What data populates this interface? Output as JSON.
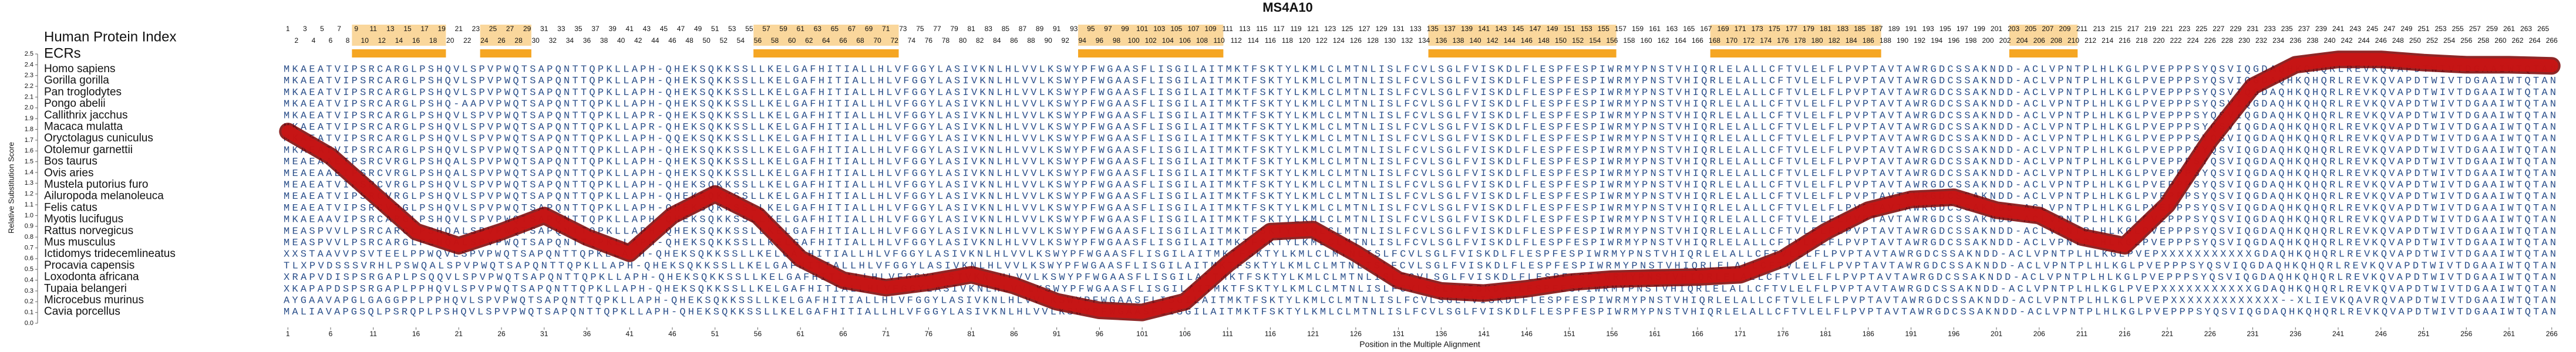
{
  "chart_data": {
    "type": "line",
    "title": "MS4A10",
    "index_label": "Human Protein Index",
    "ecr_label": "ECRs",
    "y_label": "Relative Substitution Score",
    "x_label": "Position in the Multiple Alignment",
    "color": "#cc1414",
    "ecr_color": "#f5a623",
    "xlim": [
      0.5,
      266.5
    ],
    "ylim": [
      0,
      2.5
    ],
    "xticks": [
      1,
      6,
      11,
      16,
      21,
      26,
      31,
      36,
      41,
      46,
      51,
      56,
      61,
      66,
      71,
      76,
      81,
      86,
      91,
      96,
      101,
      106,
      111,
      116,
      121,
      126,
      131,
      136,
      141,
      146,
      151,
      156,
      161,
      166,
      171,
      176,
      181,
      186,
      191,
      196,
      201,
      206,
      211,
      216,
      221,
      226,
      231,
      236,
      241,
      246,
      251,
      256,
      261,
      266
    ],
    "yticks": [
      {
        "value": 0,
        "label": "0.0"
      },
      0.1,
      0.2,
      0.3,
      0.4,
      0.5,
      0.6,
      0.7,
      0.8,
      0.9,
      {
        "value": 1,
        "label": "1.0"
      },
      1.1,
      1.2,
      1.3,
      1.4,
      1.5,
      1.6,
      1.7,
      1.8,
      1.9,
      {
        "value": 2,
        "label": "2.0"
      },
      2.1,
      2.2,
      2.3,
      2.4,
      2.5
    ],
    "categories": [
      1,
      2,
      3,
      4,
      5,
      6,
      7,
      8,
      9,
      10,
      11,
      12,
      13,
      14,
      15,
      16,
      17,
      18,
      19,
      20,
      21,
      22,
      23,
      24,
      25,
      26,
      27,
      28,
      29,
      30,
      31,
      32,
      33,
      34,
      35,
      36,
      37,
      38,
      39,
      40,
      41,
      42,
      43,
      44,
      45,
      46,
      47,
      48,
      49,
      50,
      51,
      52,
      53,
      54,
      55,
      56,
      57,
      58,
      59,
      60,
      61,
      62,
      63,
      64,
      65,
      66,
      67,
      68,
      69,
      70,
      71,
      72,
      73,
      74,
      75,
      76,
      77,
      78,
      79,
      80,
      81,
      82,
      83,
      84,
      85,
      86,
      87,
      88,
      89,
      90,
      91,
      92,
      93,
      94,
      95,
      96,
      97,
      98,
      99,
      100,
      101,
      102,
      103,
      104,
      105,
      106,
      107,
      108,
      109,
      110,
      111,
      112,
      113,
      114,
      115,
      116,
      117,
      118,
      119,
      120,
      121,
      122,
      123,
      124,
      125,
      126,
      127,
      128,
      129,
      130,
      131,
      132,
      133,
      134,
      135,
      136,
      137,
      138,
      139,
      140,
      141,
      142,
      143,
      144,
      145,
      146,
      147,
      148,
      149,
      150,
      151,
      152,
      153,
      154,
      155,
      156,
      157,
      158,
      159,
      160,
      161,
      162,
      163,
      164,
      165,
      166,
      167,
      168,
      169,
      170,
      171,
      172,
      173,
      174,
      175,
      176,
      177,
      178,
      179,
      180,
      181,
      182,
      183,
      184,
      185,
      186,
      187,
      188,
      189,
      190,
      191,
      192,
      193,
      194,
      195,
      196,
      197,
      198,
      199,
      200,
      201,
      202,
      203,
      204,
      205,
      206,
      207,
      208,
      209,
      210,
      211,
      212,
      213,
      214,
      215,
      216,
      217,
      218,
      219,
      220,
      221,
      222,
      223,
      224,
      225,
      226,
      227,
      228,
      229,
      230,
      231,
      232,
      233,
      234,
      235,
      236,
      237,
      238,
      239,
      240,
      241,
      242,
      243,
      244,
      245,
      246,
      247,
      248,
      249,
      250,
      251,
      252,
      253,
      254,
      255,
      256,
      257,
      258,
      259,
      260,
      261,
      262,
      263,
      264,
      265,
      266
    ],
    "ecrs": [
      [
        9,
        19
      ],
      [
        24,
        29
      ],
      [
        56,
        72
      ],
      [
        94,
        110
      ],
      [
        135,
        156
      ],
      [
        168,
        187
      ],
      [
        203,
        210
      ]
    ],
    "x": [
      1,
      6,
      11,
      16,
      21,
      26,
      31,
      36,
      41,
      46,
      51,
      56,
      61,
      66,
      71,
      76,
      81,
      86,
      91,
      96,
      101,
      106,
      111,
      116,
      121,
      126,
      131,
      136,
      141,
      146,
      151,
      156,
      161,
      166,
      171,
      176,
      181,
      186,
      191,
      196,
      201,
      206,
      211,
      216,
      221,
      226,
      231,
      236,
      241,
      246,
      251,
      256,
      261,
      266
    ],
    "values": [
      1.78,
      1.55,
      1.2,
      0.85,
      0.72,
      0.85,
      1.0,
      0.8,
      0.65,
      1.0,
      1.2,
      1.0,
      0.6,
      0.4,
      0.33,
      0.38,
      0.45,
      0.35,
      0.2,
      0.12,
      0.1,
      0.2,
      0.55,
      0.85,
      0.87,
      0.65,
      0.4,
      0.3,
      0.28,
      0.32,
      0.38,
      0.41,
      0.42,
      0.43,
      0.45,
      0.6,
      0.85,
      1.05,
      1.15,
      1.17,
      1.05,
      1.0,
      0.8,
      0.72,
      1.1,
      1.7,
      2.2,
      2.4,
      2.45,
      2.45,
      2.42,
      2.4,
      2.4,
      2.39
    ],
    "alignment": [
      {
        "name": "Homo sapiens",
        "sequence": "MKAEATVIPSRCARGLPSHQVLSPVPWQTSAPQNTTQPKLLAPH-QHEKSQKKSSLLKELGAFHITIALLHLVFGGYLASIVKNLHLVVLKSWYPFWGAASFLISGILAITMKTFSKTYLKMLCLMTNLISLFCVLSGLFVISKDLFLESPFESPIWRMYPNSTVHIQRLELALLCFTVLELFLPVPTAVTAWRGDCSSAKNDD-ACLVPNTPLHLKGLPVEPPPSYQSVIQGDAQHKQHQRLREVKQVAPDTWIVTDGAAIWTQTAN"
      },
      {
        "name": "Gorilla gorilla",
        "sequence": "MKAEATVIPSRCARGLPSHQVLSPVPWQTSAPQNTTQPKLLAPH-QHEKSQKKSSLLKELGAFHITIALLHLVFGGYLASIVKNLHLVVLKSWYPFWGAASFLISGILAITMKTFSKTYLKMLCLMTNLISLFCVLSGLFVISKDLFLESPFESPIWRMYPNSTVHIQRLELALLCFTVLELFLPVPTAVTAWRGDCSSAKNDD-ACLVPNTPLHLKGLPVEPPPSYQSVIQGDAQHKQHQRLREVKQVAPDTWIVTDGAAIWTQTAN"
      },
      {
        "name": "Pan troglodytes",
        "sequence": "MKAEATVIPSRCARGLPSHQVLSPVPWQTSAPQNTTQPKLLAPH-QHEKSQKKSSLLKELGAFHITIALLHLVFGGYLASIVKNLHLVVLKSWYPFWGAASFLISGILAITMKTFSKTYLKMLCLMTNLISLFCVLSGLFVISKDLFLESPFESPIWRMYPNSTVHIQRLELALLCFTVLELFLPVPTAVTAWRGDCSSAKNDD-ACLVPNTPLHLKGLPVEPPPSYQSVIQGDAQHKQHQRLREVKQVAPDTWIVTDGAAIWTQTAN"
      },
      {
        "name": "Pongo abelii",
        "sequence": "MKAEATVIPSRCARGLPSHQ-AAPVPWQTSAPQNTTQPKLLAPH-QHEKSQKKSSLLKELGAFHITIALLHLVFGGYLASIVKNLHLVVLKSWYPFWGAASFLISGILAITMKTFSKTYLKMLCLMTNLISLFCVLSGLFVISKDLFLESPFESPIWRMYPNSTVHIQRLELALLCFTVLELFLPVPTAVTAWRGDCSSAKNDD-ACLVPNTPLHLKGLPVEPPPSYQSVIQGDAQHKQHQRLREVKQVAPDTWIVTDGAAIWTQTAN"
      },
      {
        "name": "Callithrix jacchus",
        "sequence": "MKAEATVIPSRCARGLPSHQVLSPVPWQTSAPQNTTQPKLLAPR-QHEKSQKKSSLLKELGAFHITIALLHLVFGGYLASIVKNLHLVVLKSWYPFWGAASFLISGILAITMKTFSKTYLKMLCLMTNLISLFCVLSGLFVISKDLFLESPFESPIWRMYPNSTVHIQRLELALLCFTVLELFLPVPTAVTAWRGDCSSAKNDD-ACLVPNTPLHLKGLPVEPPPSYQSVIQGDAQHKQHQRLREVKQVAPDTWIVTDGAAIWTQTAN"
      },
      {
        "name": "Macaca mulatta",
        "sequence": "MKAEATVIPSRCARGLPSHQVLSPVPWQTSAPQNTTQPKLLAPR-QHEKSQKKSSLLKELGAFHITIALLHLVFGGYLASIVKNLHLVVLKSWYPFWGAASFLISGILAITMKTFSKTYLKMLCLMTNLISLFCVLSGLFVISKDLFLESPFESPIWRMYPNSTVHIQRLELALLCFTVLELFLPVPTAVTAWRGDCSSAKNDD-ACLVPNTPLHLKGLPVEPPPSYQSVIQGDAQHKQHQRLREVKQVAPDTWIVTDGAAIWTQTAN"
      },
      {
        "name": "Oryctolagus cuniculus",
        "sequence": "MKAEATVIPSRCARGLPSHQVLSPVPWQTSAPQNTTQPKLLAPH-QQEKSQKKSSLLKELGAFHITIALLHLVFGGYLASIVKNLHLVVLKSWYPFWGAASFLISGILAITMKTFSKTYLKMLCLMTNLISLFCVLSGLFVISKDLFLESPFESPIWRMYPNSTVHIQRLELALLCFTVLELFLPVPTAVTAWRGDCSSAKNDD-ACLVPNTPLHLKGLPVEPPPSYQSVIQGDAQHKQHQRLREVKQVAPDTWIVTDGAAIWTQTAN"
      },
      {
        "name": "Otolemur garnettii",
        "sequence": "MKAEATVIPSRCARGLPSHQVLSPVPWQTSAPQNTTQPKLLAPH-QHEKSQKKSSLLKELGAFHITIALLHLVFGGYLASIVKNLHLVVLKSWYPFWGAASFLISGILAITMKTFSKTYLKMLCLMTNLISLFCVLSGLFVISKDLFLESPFESPIWRMYPNSTVHIQRLELALLCFTVLELFLPVPTAVTAWRGDCSSAKNDD-ACLVPNTPLHLKGLPVEPPPSYQSVIQGDAQHKQHQRLREVKQVAPDTWIVTDGAAIWTQTAN"
      },
      {
        "name": "Bos taurus",
        "sequence": "MEAEAAEIPSRCVRGLPSHQALSPVPWQTSAPQNTTQPKLLAPH-QHEKSQKKSSLLKELGAFHITIALLHLVFGGYLASIVKNLHLVVLKSWYPFWGAASFLISGILAITMKTFSKTYLKMLCLMTNLISLFCVLSGLFVISKDLFLESPFESPIWRMYPNSTVHIQRLELALLCFTVLELFLPVPTAVTAWRGDCSSAKNDD-ACLVPNTPLHLKGLPVEPPPSYQSVIQGDAQHKQHQRLREVKQVAPDTWIVTDGAAIWTQTAN"
      },
      {
        "name": "Ovis aries",
        "sequence": "MEAEAAEIPSRCVRGLPSHQALSPVPWQTSAPQNTTQPKLLAPH-QHEKSQKKSSLLKELGAFHITIALLHLVFGGYLASIVKNLHLVVLKSWYPFWGAASFLISGILAITMKTFSKTYLKMLCLMTNLISLFCVLSGLFVISKDLFLESPFESPIWRMYPNSTVHIQRLELALLCFTVLELFLPVPTAVTAWRGDCSSAKNDD-ACLVPNTPLHLKGLPVEPPPSYQSVIQGDAQHKQHQRLREVKQVAPDTWIVTDGAAIWTQTAN"
      },
      {
        "name": "Mustela putorius furo",
        "sequence": "MEAEATVIPSRCVRGLPSHQVLSPVPWQTSAPQNTTQPKLLAPH-QHEKSQKKSSLLKELGAFHITIALLHLVFGGYLASIVKNLHLVVLKSWYPFWGAASFLISGILAITMKTFSKTYLKMLCLMTNLISLFCVLSGLFVISKDLFLESPFESPIWRMYPNSTVHIQRLELALLCFTVLELFLPVPTAVTAWRGDCSSAKNDD-ACLVPNTPLHLKGLPVEPPPSYQSVIQGDAQHKQHQRLREVKQVAPDTWIVTDGAAIWTQTAN"
      },
      {
        "name": "Ailuropoda melanoleuca",
        "sequence": "MEAEATVIPSRCVRGLPSHQVLSPVPWQTSAPQNTTQPKLLAPH-QHEKSQKKSSLLKELGAFHITIALLHLVFGGYLASIVKNLHLVVLKSWYPFWGAASFLISGILAITMKTFSKTYLKMLCLMTNLISLFCVLSGLFVISKDLFLESPFESPIWRMYPNSTVHIQRLELALLCFTVLELFLPVPTAVTAWRGDCSSAKNDD-ACLVPNTPLHLKGLPVEPPPSYQSVIQGDAQHKQHQRLREVKQVAPDTWIVTDGAAIWTQTAN"
      },
      {
        "name": "Felis catus",
        "sequence": "MEAEATVIPSRCVRGLPSHQVLSPVPWQTSAPQNTTQPKLLAPH-QHEKSQKKSSLLKELGAFHITIALLHLVFGGYLASIVKNLHLVVLKSWYPFWGAASFLISGILAITMKTFSKTYLKMLCLMTNLISLFCVLSGLFVISKDLFLESPFESPIWRMYPNSTVHIQRLELALLCFTVLELFLPVPTAVTAWRGDCSSAKNDD-ACLVPNTPLHLKGLPVEPPPSYQSVIQGDAQHKQHQRLREVKQVAPDTWIVTDGAAIWTQTAN"
      },
      {
        "name": "Myotis lucifugus",
        "sequence": "MKAEAAVIPSRCARGLPSHQVLSPVPWQTSAPQNTTQPKLLAPH-QHEKSQKKSSLLKELGAFHITIALLHLVFGGYLASIVKNLHLVVLKSWYPFWGAASFLISGILAITMKTFSKTYLKMLCLMTNLISLFCVLSGLFVISKDLFLESPFESPIWRMYPNSTVHIQRLELALLCFTVLELFLPVPTAVTAWRGDCSSAKNDD-ACLVPNTPLHLKGLPVEPPPSYQSVIQGDAQHKQHQRLREVKQVAPDTWIVTDGAAIWTQTAN"
      },
      {
        "name": "Rattus norvegicus",
        "sequence": "MEASPVVLPSRCARGLPSHQALSPVPWQTSAPQNTTQPKLLAPH-QHEKSQKKSSLLKELGAFHITIALLHLVFGGYLASIVKNLHLVVLKSWYPFWGAASFLISGILAITMKTFSKTYLKMLCLMTNLISLFCVLSGLFVISKDLFLESPFESPIWRMYPNSTVHIQRLELALLCFTVLELFLPVPTAVTAWRGDCSSAKNDD-ACLVPNTPLHLKGLPVEPPPSYQSVIQGDAQHKQHQRLREVKQVAPDTWIVTDGAAIWTQTAN"
      },
      {
        "name": "Mus musculus",
        "sequence": "MEASPVVLPSRCARGLPSHQALSPVPWQTSAPQNTTQPKLLAPH-QHEKSQKKSSLLKELGAFHITIALLHLVFGGYLASIVKNLHLVVLKSWYPFWGAASFLISGILAITMKTFSKTYLKMLCLMTNLISLFCVLSGLFVISKDLFLESPFESPIWRMYPNSTVHIQRLELALLCFTVLELFLPVPTAVTAWRGDCSSAKNDD-ACLVPNTPLHLKGLPVEPPPSYQSVIQGDAQHKQHQRLREVKQVAPDTWIVTDGAAIWTQTAN"
      },
      {
        "name": "Ictidomys tridecemlineatus",
        "sequence": "XXSTAAVVPSVTEELPPWQVLSPVPWQTSAPQNTTQPKLLAPH-QHEKSQKKSSLLKELGAFHITIALLHLVFGGYLASIVKNLHLVVLKSWYPFWGAASFLISGILAITMKTFSKTYLKMLCLMTNLISLFCVLSGLFVISKDLFLESPFESPIWRMYPNSTVHIQRLELALLCFTVLELFLPVPTAVTAWRGDCSSAKNDD-ACLVPNTPLHLKGLPVEPXXXXXXXXXXXGDAQHKQHQRLREVKQVAPDTWIVTDGAAIWTQTAN"
      },
      {
        "name": "Procavia capensis",
        "sequence": "TLXPVDSSSVRHLPSWQALSPVPWQTSAPQNTTQPKLLAPH-QHEKSQKKSSLLKELGAFHITIALLHLVFGGYLASIVKNLHLVVLKSWYPFWGAASFLISGILAITMKTFSKTYLKMLCLMTNLISLFCVLSGLFVISKDLFLESPFESPIWRMYPNSTVHIQRLELALLCFTVLELFLPVPTAVTAWRGDCSSAKNDD-ACLVPNTPLHLKGLPVEPPPSYQSVIQGDAQHKQHQRLREVKQVAPDTWIVTDGAAIWTQTAN"
      },
      {
        "name": "Loxodonta africana",
        "sequence": "XRAPVDISPSRGAPLPSQQVLSPVPWQTSAPQNTTQPKLLAPH-QHEKSQKKSSLLKELGAFHITIALLHLVFGGYLASIVKNLHLVVLKSWYPFWGAASFLISGILAITMKTFSKTYLKMLCLMTNLISLFCVLSGLFVISKDLFLESPFESPIWRMYPNSTVHIQRLELALLCFTVLELFLPVPTAVTAWRGDCSSAKNDD-ACLVPNTPLHLKGLPVEPPPSYQSVIQGDAQHKQHQRLREVKQVAPDTWIVTDGAAIWTQTAN"
      },
      {
        "name": "Tupaia belangeri",
        "sequence": "XKAPAPDSPSRGAPLPPHQVLSPVPWQTSAPQNTTQPKLLAPH-QHEKSQKKSSLLKELGAFHITIALLHLVFGGYLASIVKNLHLVVLKSWYPFWGAASFLISGILAITMKTFSKTYLKMLCLMTNLISLFCVLSGLFVISKDLFLESPFESPIWRMYPNSTVHIQRLELALLCFTVLELFLPVPTAVTAWRGDCSSAKNDD-ACLVPNTPLHLKGLPVEPXXXXXXXXXXXGDAQHKQHQRLREVKQVAPDTWIVTDGAAIWTQTAN"
      },
      {
        "name": "Microcebus murinus",
        "sequence": "AYGAAVAPGLGAGGPPLPPHQVLSPVPWQTSAPQNTTQPKLLAPH-QHEKSQKKSSLLKELGAFHITIALLHLVFGGYLASIVKNLHLVVLKSWYPFWGAASFLISGILAITMKTFSKTYLKMLCLMTNLISLFCVLSGLFVISKDLFLESPFESPIWRMYPNSTVHIQRLELALLCFTVLELFLPVPTAVTAWRGDCSSAKNDD-ACLVPNTPLHLKGLPVEPXXXXXXXXXXXXX--XLIEVKQAVRQVAPDTWIVTDGAAIWTQTAN"
      },
      {
        "name": "Cavia porcellus",
        "sequence": "MALIAVAPGSQLPSRQPLPSHQVLSPVPWQTSAPQNTTQPKLLAPH-QHEKSQKKSSLLKELGAFHITIALLHLVFGGYLASIVKNLHLVVLKSWYPFWGAASFLISGILAITMKTFSKTYLKMLCLMTNLISLFCVLSGLFVISKDLFLESPFESPIWRMYPNSTVHIQRLELALLCFTVLELFLPVPTAVTAWRGDCSSAKNDD-ACLVPNTPLHLKGLPVEPPPSYQSVIQGDAQHKQHQRLREVKQVAPDTWIVTDGAAIWTQTAN"
      }
    ]
  }
}
